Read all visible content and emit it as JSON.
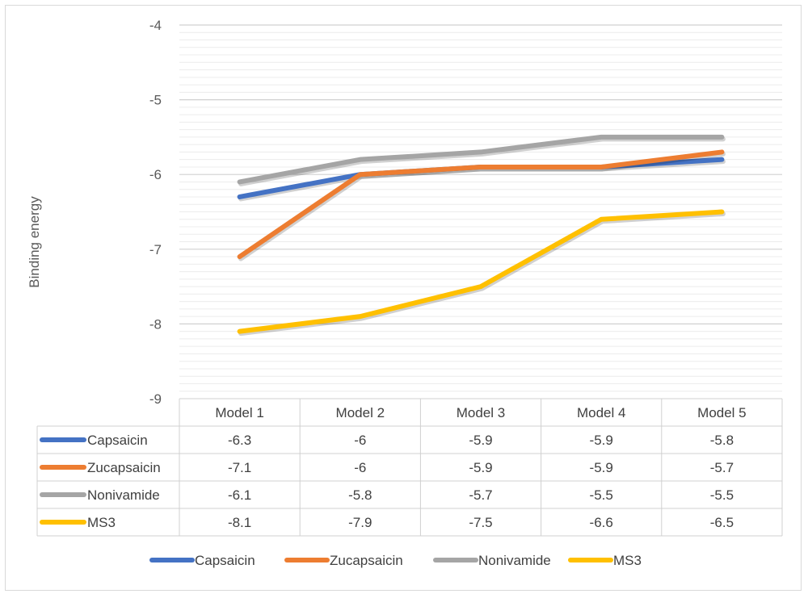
{
  "chart_data": {
    "type": "line",
    "ylabel": "Binding energy",
    "xlabel": "",
    "ylim": [
      -9,
      -4
    ],
    "yticks": [
      -4,
      -5,
      -6,
      -7,
      -8,
      -9
    ],
    "grid": true,
    "legend_position": "bottom",
    "data_table": true,
    "categories": [
      "Model 1",
      "Model 2",
      "Model 3",
      "Model 4",
      "Model 5"
    ],
    "series": [
      {
        "name": "Capsaicin",
        "color": "#4472c4",
        "values": [
          -6.3,
          -6,
          -5.9,
          -5.9,
          -5.8
        ]
      },
      {
        "name": "Zucapsaicin",
        "color": "#ed7d31",
        "values": [
          -7.1,
          -6,
          -5.9,
          -5.9,
          -5.7
        ]
      },
      {
        "name": "Nonivamide",
        "color": "#a5a5a5",
        "values": [
          -6.1,
          -5.8,
          -5.7,
          -5.5,
          -5.5
        ]
      },
      {
        "name": "MS3",
        "color": "#ffc000",
        "values": [
          -8.1,
          -7.9,
          -7.5,
          -6.6,
          -6.5
        ]
      }
    ]
  }
}
